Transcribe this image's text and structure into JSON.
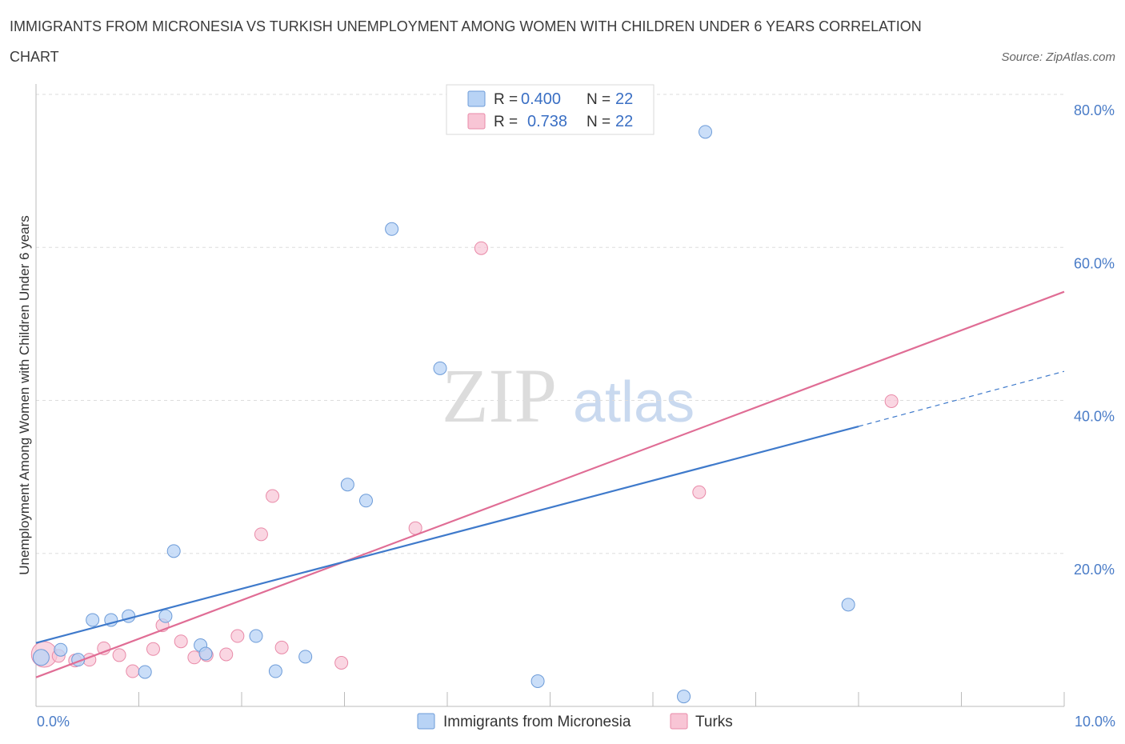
{
  "header": {
    "title_line1": "IMMIGRANTS FROM MICRONESIA VS TURKISH UNEMPLOYMENT AMONG WOMEN WITH CHILDREN UNDER 6 YEARS CORRELATION",
    "title_line2": "CHART",
    "source": "Source: ZipAtlas.com"
  },
  "legend": {
    "row1": {
      "r_label": "R =",
      "r_value": "0.400",
      "n_label": "N =",
      "n_value": "22"
    },
    "row2": {
      "r_label": "R =",
      "r_value": "0.738",
      "n_label": "N =",
      "n_value": "22"
    }
  },
  "bottom_legend": {
    "series1": "Immigrants from Micronesia",
    "series2": "Turks"
  },
  "watermark": {
    "zip": "ZIP",
    "atlas": "atlas"
  },
  "colors": {
    "blue_fill": "#b8d3f5",
    "blue_stroke": "#6c9bd8",
    "blue_line": "#3f7acb",
    "pink_fill": "#f8c5d5",
    "pink_stroke": "#e98aa8",
    "pink_line": "#e06d95",
    "tick_text": "#4a7cc7",
    "grid": "#dddddd"
  },
  "chart_data": {
    "type": "scatter",
    "title": "IMMIGRANTS FROM MICRONESIA VS TURKISH UNEMPLOYMENT AMONG WOMEN WITH CHILDREN UNDER 6 YEARS CORRELATION CHART",
    "xlabel": "",
    "ylabel": "Unemployment Among Women with Children Under 6 years",
    "xlim": [
      0,
      10
    ],
    "ylim": [
      0,
      80
    ],
    "x_tick_labels": [
      "0.0%",
      "10.0%"
    ],
    "y_ticks": [
      20,
      40,
      60,
      80
    ],
    "y_tick_labels": [
      "20.0%",
      "40.0%",
      "60.0%",
      "80.0%"
    ],
    "grid": true,
    "legend_position": "top-center",
    "series": [
      {
        "name": "Immigrants from Micronesia",
        "color": "#6c9bd8",
        "points": [
          {
            "x": 0.05,
            "y": 6.4
          },
          {
            "x": 0.24,
            "y": 7.4
          },
          {
            "x": 0.41,
            "y": 6.1
          },
          {
            "x": 0.55,
            "y": 11.3
          },
          {
            "x": 0.73,
            "y": 11.3
          },
          {
            "x": 0.9,
            "y": 11.8
          },
          {
            "x": 1.06,
            "y": 4.5
          },
          {
            "x": 1.26,
            "y": 11.8
          },
          {
            "x": 1.34,
            "y": 20.3
          },
          {
            "x": 1.6,
            "y": 8.0
          },
          {
            "x": 1.65,
            "y": 6.9
          },
          {
            "x": 2.14,
            "y": 9.2
          },
          {
            "x": 2.33,
            "y": 4.6
          },
          {
            "x": 2.62,
            "y": 6.5
          },
          {
            "x": 3.03,
            "y": 29.0
          },
          {
            "x": 3.21,
            "y": 26.9
          },
          {
            "x": 3.46,
            "y": 62.4
          },
          {
            "x": 3.93,
            "y": 44.2
          },
          {
            "x": 4.88,
            "y": 3.3
          },
          {
            "x": 6.3,
            "y": 1.3
          },
          {
            "x": 6.51,
            "y": 75.1
          },
          {
            "x": 7.9,
            "y": 13.3
          }
        ],
        "trend": {
          "x0": 0,
          "y0": 8.3,
          "x1": 8.0,
          "y1": 36.6,
          "dashed_to_x": 10.0,
          "dashed_to_y": 43.8
        }
      },
      {
        "name": "Turks",
        "color": "#e98aa8",
        "points": [
          {
            "x": 0.08,
            "y": 6.8
          },
          {
            "x": 0.22,
            "y": 6.6
          },
          {
            "x": 0.38,
            "y": 6.0
          },
          {
            "x": 0.52,
            "y": 6.1
          },
          {
            "x": 0.66,
            "y": 7.6
          },
          {
            "x": 0.81,
            "y": 6.7
          },
          {
            "x": 0.94,
            "y": 4.6
          },
          {
            "x": 1.14,
            "y": 7.5
          },
          {
            "x": 1.23,
            "y": 10.6
          },
          {
            "x": 1.41,
            "y": 8.5
          },
          {
            "x": 1.54,
            "y": 6.4
          },
          {
            "x": 1.66,
            "y": 6.7
          },
          {
            "x": 1.85,
            "y": 6.8
          },
          {
            "x": 1.96,
            "y": 9.2
          },
          {
            "x": 2.19,
            "y": 22.5
          },
          {
            "x": 2.3,
            "y": 27.5
          },
          {
            "x": 2.39,
            "y": 7.7
          },
          {
            "x": 2.97,
            "y": 5.7
          },
          {
            "x": 3.69,
            "y": 23.3
          },
          {
            "x": 4.33,
            "y": 59.9
          },
          {
            "x": 6.45,
            "y": 28.0
          },
          {
            "x": 8.32,
            "y": 39.9
          }
        ],
        "trend": {
          "x0": 0,
          "y0": 3.8,
          "x1": 10.0,
          "y1": 54.2
        }
      }
    ]
  }
}
